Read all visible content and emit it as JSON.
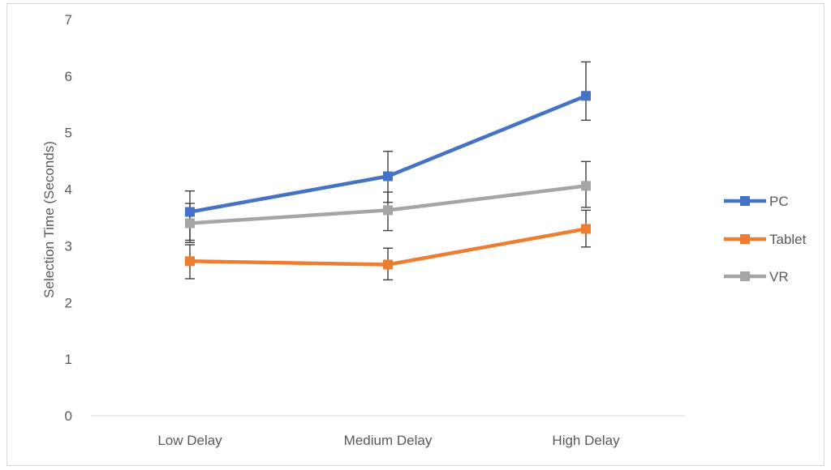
{
  "chart_data": {
    "type": "line",
    "title": "",
    "xlabel": "",
    "ylabel": "Selection Time (Seconds)",
    "categories": [
      "Low Delay",
      "Medium Delay",
      "High Delay"
    ],
    "ylim": [
      0,
      7
    ],
    "yticks": [
      "0",
      "1",
      "2",
      "3",
      "4",
      "5",
      "6",
      "7"
    ],
    "grid": false,
    "legend_position": "right",
    "series": [
      {
        "name": "PC",
        "color": "#4472c4",
        "values": [
          3.6,
          4.23,
          5.65
        ],
        "error_low": [
          3.1,
          3.77,
          5.22
        ],
        "error_high": [
          3.97,
          4.67,
          6.25
        ]
      },
      {
        "name": "Tablet",
        "color": "#ed7d31",
        "values": [
          2.73,
          2.67,
          3.3
        ],
        "error_low": [
          2.42,
          2.4,
          2.98
        ],
        "error_high": [
          3.02,
          2.96,
          3.63
        ]
      },
      {
        "name": "VR",
        "color": "#a5a5a5",
        "values": [
          3.4,
          3.63,
          4.06
        ],
        "error_low": [
          3.06,
          3.27,
          3.68
        ],
        "error_high": [
          3.75,
          3.95,
          4.49
        ]
      }
    ]
  }
}
